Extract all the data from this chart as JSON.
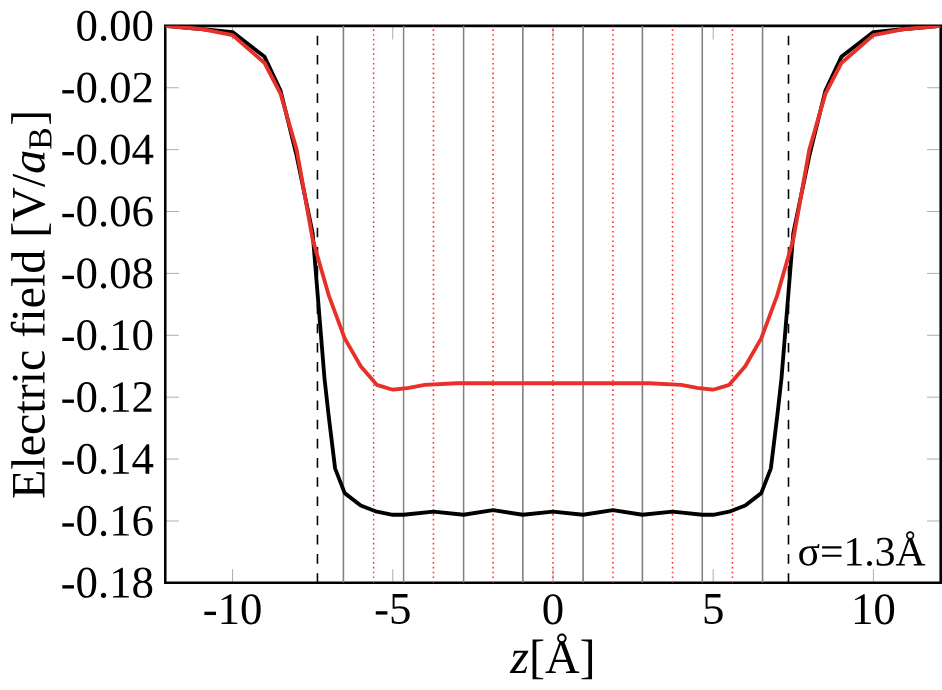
{
  "chart_data": {
    "type": "line",
    "xlabel": "*z*[Å]",
    "ylabel": "Electric field [V/*a*$_{B}$]",
    "xlim": [
      -12.1,
      12.1
    ],
    "ylim": [
      -0.18,
      0
    ],
    "xticks": [
      -10,
      -5,
      0,
      5,
      10
    ],
    "yticks": [
      {
        "value": -0.18,
        "label": "-0.18"
      },
      {
        "value": -0.16,
        "label": "-0.16"
      },
      {
        "value": -0.14,
        "label": "-0.14"
      },
      {
        "value": -0.12,
        "label": "-0.12"
      },
      {
        "value": -0.1,
        "label": "-0.10"
      },
      {
        "value": -0.08,
        "label": "-0.08"
      },
      {
        "value": -0.06,
        "label": "-0.06"
      },
      {
        "value": -0.04,
        "label": "-0.04"
      },
      {
        "value": -0.02,
        "label": "-0.02"
      },
      {
        "value": 0,
        "label": "0.00"
      }
    ],
    "series": [
      {
        "color": "#000000",
        "x": [
          -12.1,
          -11,
          -10,
          -9,
          -8.5,
          -8,
          -7.5,
          -7.13,
          -7,
          -6.8,
          -6.5,
          -6,
          -5.5,
          -5,
          -4.66,
          -3.73,
          -2.79,
          -1.87,
          -0.94,
          0,
          0.94,
          1.87,
          2.79,
          3.73,
          4.66,
          5,
          5.5,
          6,
          6.5,
          6.8,
          7,
          7.13,
          7.5,
          8,
          8.5,
          9,
          10,
          11,
          12.1
        ],
        "values": [
          0,
          -0.001,
          -0.002,
          -0.01,
          -0.021,
          -0.042,
          -0.067,
          -0.114,
          -0.126,
          -0.143,
          -0.151,
          -0.155,
          -0.157,
          -0.158,
          -0.158,
          -0.157,
          -0.158,
          -0.1565,
          -0.158,
          -0.157,
          -0.158,
          -0.1565,
          -0.158,
          -0.157,
          -0.158,
          -0.158,
          -0.157,
          -0.155,
          -0.151,
          -0.143,
          -0.126,
          -0.114,
          -0.067,
          -0.042,
          -0.021,
          -0.01,
          -0.002,
          -0.001,
          0
        ]
      },
      {
        "color": "#e8302a",
        "x": [
          -12.1,
          -11,
          -10,
          -9,
          -8.5,
          -8,
          -7.5,
          -7,
          -6.5,
          -6,
          -5.5,
          -5,
          -4.5,
          -4,
          -3,
          0,
          3,
          4,
          4.5,
          5,
          5.5,
          6,
          6.5,
          7,
          7.5,
          8,
          8.5,
          9,
          10,
          11,
          12.1
        ],
        "values": [
          0,
          -0.001,
          -0.003,
          -0.012,
          -0.022,
          -0.04,
          -0.069,
          -0.087,
          -0.101,
          -0.11,
          -0.116,
          -0.1176,
          -0.117,
          -0.116,
          -0.1155,
          -0.1155,
          -0.1155,
          -0.116,
          -0.117,
          -0.1176,
          -0.116,
          -0.11,
          -0.101,
          -0.087,
          -0.069,
          -0.04,
          -0.022,
          -0.012,
          -0.003,
          -0.001,
          0
        ]
      }
    ],
    "ref_lines": [
      {
        "axis": "x",
        "value": -7.35,
        "color": "#000000",
        "line_style": "dashed"
      },
      {
        "axis": "x",
        "value": 7.35,
        "color": "#000000",
        "line_style": "dashed"
      },
      {
        "axis": "x",
        "value": -6.54,
        "color": "#808080",
        "line_style": "solid"
      },
      {
        "axis": "x",
        "value": -4.66,
        "color": "#808080",
        "line_style": "solid"
      },
      {
        "axis": "x",
        "value": -2.79,
        "color": "#808080",
        "line_style": "solid"
      },
      {
        "axis": "x",
        "value": -0.94,
        "color": "#808080",
        "line_style": "solid"
      },
      {
        "axis": "x",
        "value": 0.94,
        "color": "#808080",
        "line_style": "solid"
      },
      {
        "axis": "x",
        "value": 2.79,
        "color": "#808080",
        "line_style": "solid"
      },
      {
        "axis": "x",
        "value": 4.66,
        "color": "#808080",
        "line_style": "solid"
      },
      {
        "axis": "x",
        "value": 6.54,
        "color": "#808080",
        "line_style": "solid"
      },
      {
        "axis": "x",
        "value": -5.6,
        "color": "#ff3333",
        "line_style": "dotted"
      },
      {
        "axis": "x",
        "value": -3.73,
        "color": "#ff3333",
        "line_style": "dotted"
      },
      {
        "axis": "x",
        "value": -1.87,
        "color": "#ff3333",
        "line_style": "dotted"
      },
      {
        "axis": "x",
        "value": 0,
        "color": "#ff3333",
        "line_style": "dotted"
      },
      {
        "axis": "x",
        "value": 1.87,
        "color": "#ff3333",
        "line_style": "dotted"
      },
      {
        "axis": "x",
        "value": 3.73,
        "color": "#ff3333",
        "line_style": "dotted"
      },
      {
        "axis": "x",
        "value": 5.6,
        "color": "#ff3333",
        "line_style": "dotted"
      }
    ],
    "annotations": [
      "σ=1.3Å"
    ]
  }
}
